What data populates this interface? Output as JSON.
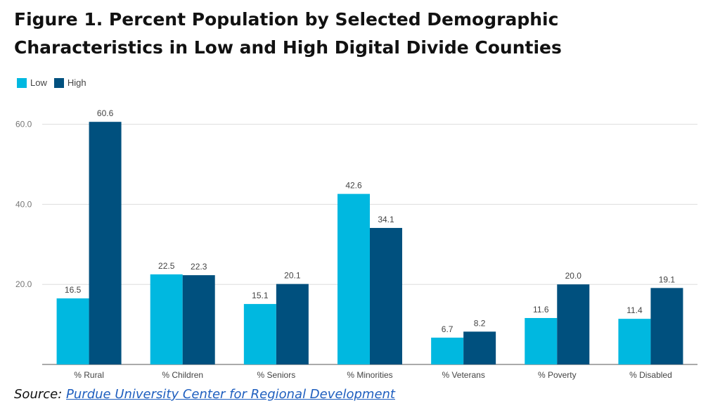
{
  "title": "Figure 1. Percent Population by Selected Demographic Characteristics in Low and High Digital Divide Counties",
  "source": {
    "label": "Source:",
    "link_text": "Purdue University Center for Regional Development"
  },
  "colors": {
    "low": "#00b8e0",
    "high": "#00507e",
    "grid": "#dddddd",
    "axis": "#555555",
    "tick_text": "#777777",
    "label_text": "#444444"
  },
  "chart_data": {
    "type": "bar",
    "categories": [
      "% Rural",
      "% Children",
      "% Seniors",
      "% Minorities",
      "% Veterans",
      "% Poverty",
      "% Disabled"
    ],
    "series": [
      {
        "name": "Low",
        "values": [
          16.5,
          22.5,
          15.1,
          42.6,
          6.7,
          11.6,
          11.4
        ]
      },
      {
        "name": "High",
        "values": [
          60.6,
          22.3,
          20.1,
          34.1,
          8.2,
          20.0,
          19.1
        ]
      }
    ],
    "value_labels": {
      "Low": [
        "16.5",
        "22.5",
        "15.1",
        "42.6",
        "6.7",
        "11.6",
        "11.4"
      ],
      "High": [
        "60.6",
        "22.3",
        "20.1",
        "34.1",
        "8.2",
        "20.0",
        "19.1"
      ]
    },
    "yticks": [
      20,
      40,
      60
    ],
    "ytick_labels": [
      "20.0",
      "40.0",
      "60.0"
    ],
    "ylim": [
      0,
      60.6
    ],
    "grid": true,
    "legend_position": "top-left"
  }
}
